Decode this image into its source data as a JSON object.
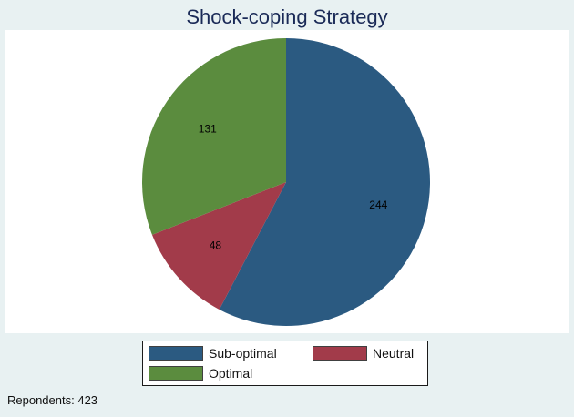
{
  "chart_data": {
    "type": "pie",
    "title": "Shock-coping Strategy",
    "labels": [
      "Sub-optimal",
      "Neutral",
      "Optimal"
    ],
    "values": [
      244,
      48,
      131
    ],
    "colors": [
      "#2b5a81",
      "#a23b4a",
      "#5b8c3e"
    ],
    "data_labels": [
      "244",
      "48",
      "131"
    ],
    "start_angle_deg": 0,
    "direction": "clockwise-from-top",
    "legend_position": "bottom",
    "note": "Repondents: 423"
  }
}
